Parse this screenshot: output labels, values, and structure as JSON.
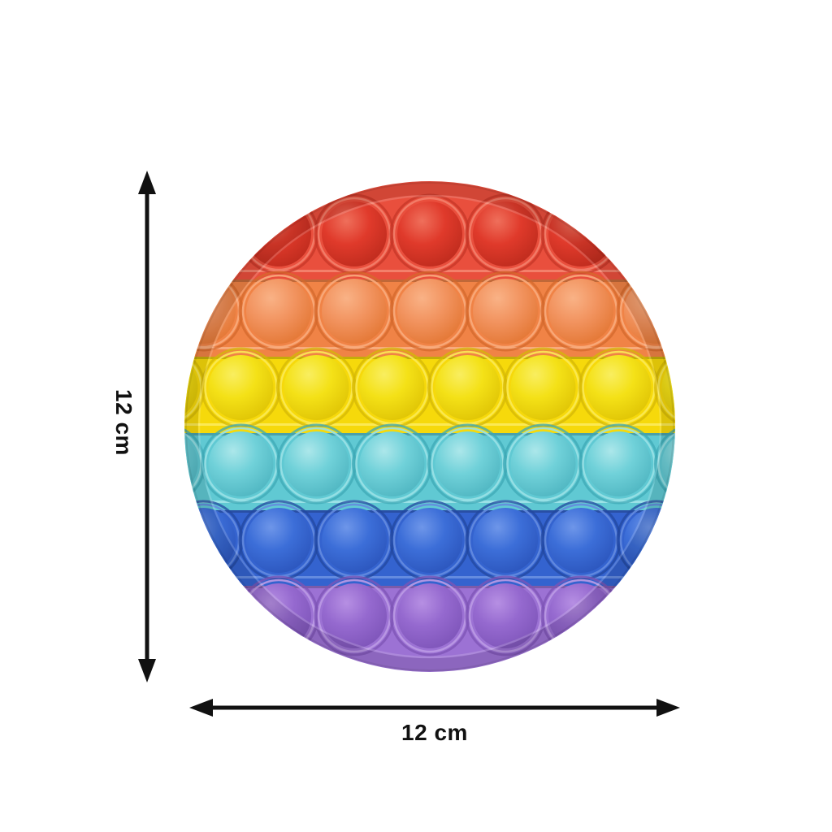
{
  "scene": {
    "background": "#ffffff",
    "description": "Rainbow round pop-it fidget toy product photo with dimension arrows"
  },
  "dimensions": {
    "vertical": {
      "label": "12 cm"
    },
    "horizontal": {
      "label": "12 cm"
    },
    "arrow_color": "#111111"
  },
  "toy": {
    "name": "rainbow-round-pop-it",
    "shape": "circle",
    "bubble_counts": [
      3,
      5,
      6,
      6,
      5,
      3
    ],
    "rows": [
      {
        "color_name": "red",
        "bubbles": 3,
        "tray": "#e94f3d",
        "light": "#f3806b",
        "dark": "#c63527",
        "dome": "#e03a2b",
        "dome_hi": "#ef6f5b",
        "dome_dk": "#bb2a1c"
      },
      {
        "color_name": "orange",
        "bubbles": 5,
        "tray": "#f08346",
        "light": "#f8ab7c",
        "dark": "#d4682c",
        "dome": "#f29460",
        "dome_hi": "#f9b286",
        "dome_dk": "#e27430"
      },
      {
        "color_name": "yellow",
        "bubbles": 6,
        "tray": "#f6d90b",
        "light": "#fbe955",
        "dark": "#d4b707",
        "dome": "#f4e117",
        "dome_hi": "#f9ee60",
        "dome_dk": "#ddc103"
      },
      {
        "color_name": "cyan",
        "bubbles": 6,
        "tray": "#60c9d3",
        "light": "#9ae1e6",
        "dark": "#3da8b5",
        "dome": "#70d1d9",
        "dome_hi": "#ace7ea",
        "dome_dk": "#4cb3bf"
      },
      {
        "color_name": "blue",
        "bubbles": 5,
        "tray": "#3463cf",
        "light": "#648bdf",
        "dark": "#22479f",
        "dome": "#3c6ed8",
        "dome_hi": "#6e96e9",
        "dome_dk": "#2a53ba"
      },
      {
        "color_name": "purple",
        "bubbles": 3,
        "tray": "#9c72d4",
        "light": "#bb9ae4",
        "dark": "#7e54b6",
        "dome": "#9569cf",
        "dome_hi": "#b68fe3",
        "dome_dk": "#7c53b7"
      }
    ]
  }
}
